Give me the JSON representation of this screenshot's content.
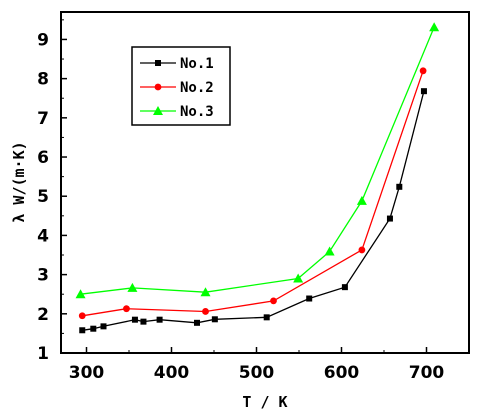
{
  "chart_data": {
    "type": "line",
    "title": "",
    "xlabel": "T / K",
    "ylabel": "λ  W/(m·K)",
    "xlim": [
      270,
      750
    ],
    "ylim": [
      1,
      9.7
    ],
    "x_ticks": [
      300,
      400,
      500,
      600,
      700
    ],
    "y_ticks": [
      1,
      2,
      3,
      4,
      5,
      6,
      7,
      8,
      9
    ],
    "grid": false,
    "legend_position": "top-left",
    "series": [
      {
        "name": "No.1",
        "color": "#000000",
        "marker": "square",
        "points": [
          [
            295,
            1.58
          ],
          [
            308,
            1.62
          ],
          [
            320,
            1.68
          ],
          [
            357,
            1.85
          ],
          [
            367,
            1.8
          ],
          [
            386,
            1.85
          ],
          [
            430,
            1.77
          ],
          [
            451,
            1.86
          ],
          [
            512,
            1.91
          ],
          [
            562,
            2.39
          ],
          [
            604,
            2.68
          ],
          [
            657,
            4.43
          ],
          [
            668,
            5.24
          ],
          [
            697,
            7.68
          ]
        ]
      },
      {
        "name": "No.2",
        "color": "#ff0000",
        "marker": "circle",
        "points": [
          [
            295,
            1.95
          ],
          [
            347,
            2.13
          ],
          [
            440,
            2.06
          ],
          [
            520,
            2.33
          ],
          [
            624,
            3.63
          ],
          [
            696,
            8.2
          ]
        ]
      },
      {
        "name": "No.3",
        "color": "#00ff00",
        "marker": "triangle",
        "points": [
          [
            293,
            2.5
          ],
          [
            354,
            2.66
          ],
          [
            440,
            2.55
          ],
          [
            549,
            2.9
          ],
          [
            586,
            3.59
          ],
          [
            624,
            4.88
          ],
          [
            709,
            9.31
          ]
        ]
      }
    ]
  }
}
